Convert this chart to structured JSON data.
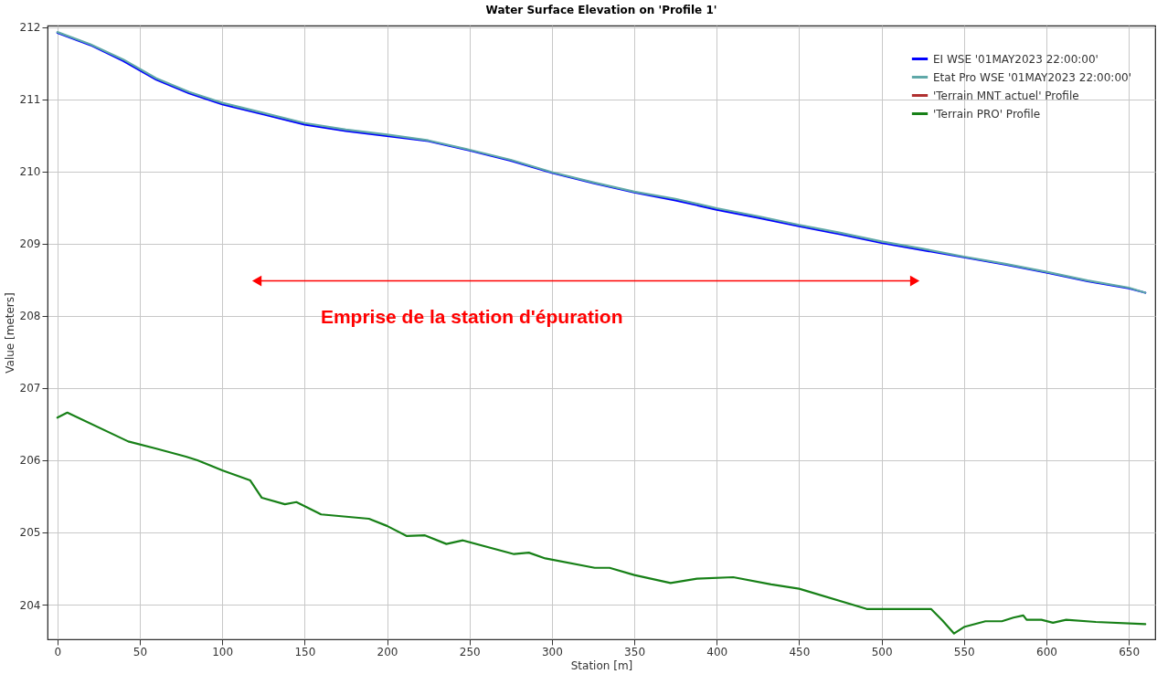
{
  "chart_data": {
    "type": "line",
    "title": "Water Surface Elevation on 'Profile 1'",
    "xlabel": "Station [m]",
    "ylabel": "Value [meters]",
    "xlim": [
      -6,
      666
    ],
    "xticks": [
      0,
      50,
      100,
      150,
      200,
      250,
      300,
      350,
      400,
      450,
      500,
      550,
      600,
      650
    ],
    "ylim": [
      203.52,
      212.02
    ],
    "yticks": [
      204,
      205,
      206,
      207,
      208,
      209,
      210,
      211,
      212
    ],
    "grid": true,
    "legend": "top right",
    "line_style": "solid",
    "marker": "none",
    "series": [
      {
        "name": "EI WSE '01MAY2023 22:00:00'",
        "color": "#0000ff",
        "x": [
          0,
          20,
          40,
          60,
          80,
          100,
          125,
          150,
          175,
          200,
          225,
          250,
          275,
          300,
          325,
          350,
          375,
          400,
          425,
          450,
          475,
          500,
          525,
          550,
          575,
          600,
          625,
          650,
          660
        ],
        "values": [
          211.92,
          211.75,
          211.53,
          211.27,
          211.08,
          210.93,
          210.79,
          210.65,
          210.56,
          210.49,
          210.42,
          210.29,
          210.15,
          209.98,
          209.84,
          209.71,
          209.6,
          209.47,
          209.36,
          209.24,
          209.13,
          209.01,
          208.91,
          208.81,
          208.71,
          208.6,
          208.48,
          208.38,
          208.32
        ]
      },
      {
        "name": "Etat Pro WSE '01MAY2023 22:00:00'",
        "color": "#5fa8a8",
        "x": [
          0,
          20,
          40,
          60,
          80,
          100,
          125,
          150,
          175,
          200,
          225,
          250,
          275,
          300,
          325,
          350,
          375,
          400,
          425,
          450,
          475,
          500,
          525,
          550,
          575,
          600,
          625,
          650,
          660
        ],
        "values": [
          211.93,
          211.76,
          211.55,
          211.29,
          211.1,
          210.95,
          210.81,
          210.67,
          210.58,
          210.51,
          210.43,
          210.3,
          210.16,
          209.99,
          209.85,
          209.72,
          209.62,
          209.49,
          209.38,
          209.26,
          209.15,
          209.03,
          208.93,
          208.82,
          208.72,
          208.61,
          208.49,
          208.39,
          208.32
        ]
      },
      {
        "name": "'Terrain MNT actuel' Profile",
        "color": "#b03030"
      },
      {
        "name": "'Terrain PRO' Profile",
        "color": "#178017",
        "x": [
          0,
          6,
          43,
          60,
          78,
          85,
          100,
          117,
          124,
          138,
          145,
          160,
          189,
          200,
          212,
          223,
          236,
          246,
          277,
          286,
          296,
          326,
          335,
          350,
          372,
          388,
          410,
          433,
          450,
          491,
          530,
          537,
          544,
          550,
          563,
          573,
          580,
          586,
          588,
          597,
          604,
          612,
          630,
          660
        ],
        "values": [
          206.59,
          206.66,
          206.26,
          206.16,
          206.05,
          206.0,
          205.86,
          205.72,
          205.48,
          205.39,
          205.42,
          205.25,
          205.19,
          205.09,
          204.95,
          204.96,
          204.84,
          204.89,
          204.7,
          204.72,
          204.64,
          204.51,
          204.51,
          204.41,
          204.3,
          204.36,
          204.38,
          204.28,
          204.22,
          203.94,
          203.94,
          203.78,
          203.6,
          203.69,
          203.77,
          203.77,
          203.82,
          203.85,
          203.79,
          203.79,
          203.75,
          203.79,
          203.76,
          203.73
        ]
      }
    ],
    "annotations": [
      "Emprise de la station d'épuration"
    ]
  }
}
